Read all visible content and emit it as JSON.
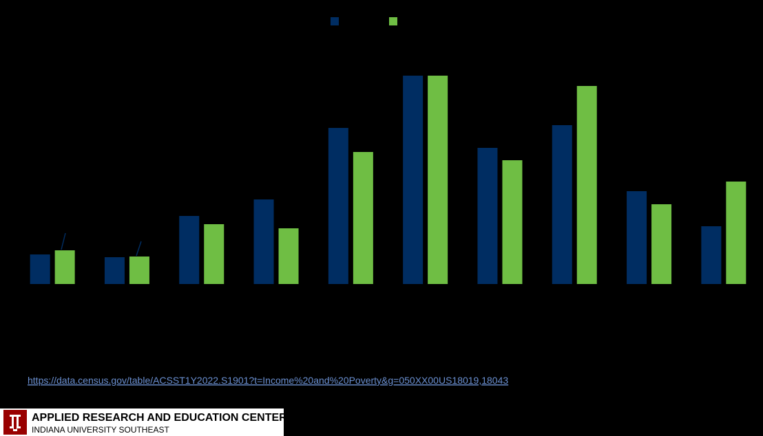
{
  "chart_data": {
    "type": "bar",
    "categories": [
      null,
      null,
      null,
      null,
      null,
      null,
      null,
      null,
      null,
      null
    ],
    "series": [
      {
        "color": "#002d62",
        "values": [
          43,
          39,
          99,
          123,
          227,
          303,
          198,
          231,
          135,
          84
        ]
      },
      {
        "color": "#6fbe44",
        "values": [
          49,
          40,
          87,
          81,
          192,
          303,
          180,
          288,
          116,
          149
        ]
      }
    ],
    "ylim": [
      0,
      310
    ],
    "legend": "top"
  },
  "source": {
    "url": "https://data.census.gov/table/ACSST1Y2022.S1901?t=Income%20and%20Poverty&g=050XX00US18019,18043"
  },
  "footer": {
    "title": "APPLIED RESEARCH AND EDUCATION CENTER",
    "subtitle": "INDIANA UNIVERSITY SOUTHEAST"
  }
}
